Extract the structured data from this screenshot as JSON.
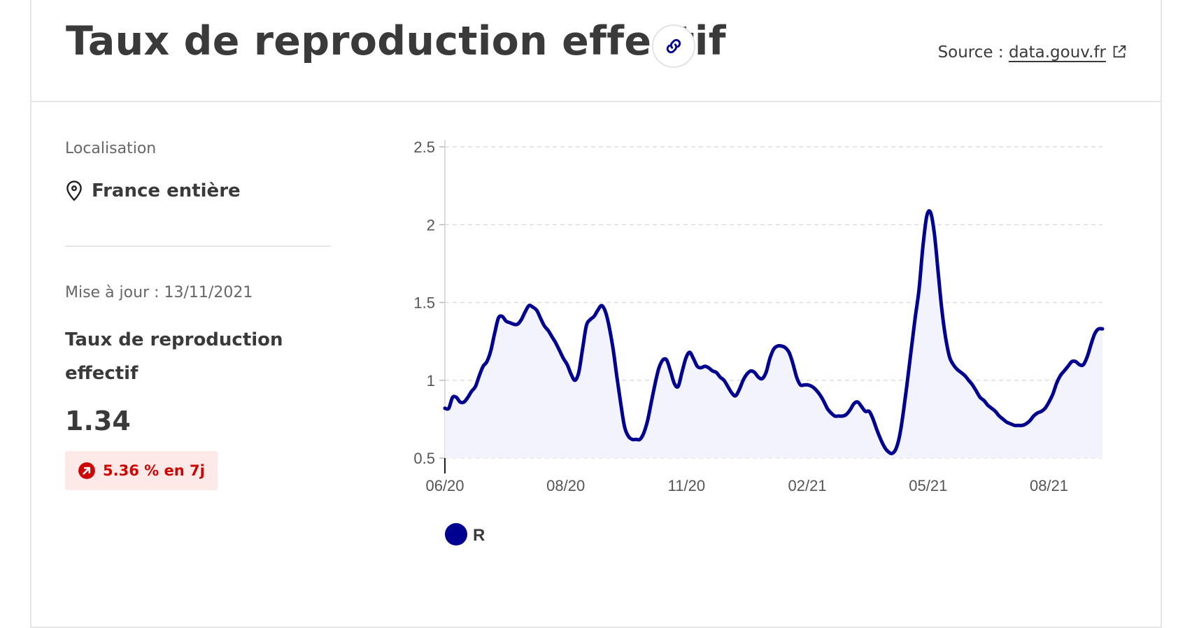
{
  "header": {
    "title": "Taux de reproduction effectif",
    "link_icon": "link-icon",
    "source_label": "Source : ",
    "source_link": "data.gouv.fr",
    "external_icon": "external-link-icon"
  },
  "sidebar": {
    "location_label": "Localisation",
    "location_icon": "map-pin-icon",
    "location_value": "France entière",
    "updated": "Mise à jour : 13/11/2021",
    "metric_name": "Taux de reproduction effectif",
    "metric_value": "1.34",
    "trend_icon": "arrow-up-right-icon",
    "trend_text": "5.36 % en 7j",
    "trend_color": "#ce0500"
  },
  "chart_data": {
    "type": "area",
    "ylim": [
      0.5,
      2.5
    ],
    "yticks": [
      "0.5",
      "1",
      "1.5",
      "2",
      "2.5"
    ],
    "xticks": [
      "06/20",
      "08/20",
      "11/20",
      "02/21",
      "05/21",
      "08/21"
    ],
    "grid": true,
    "legend_position": "bottom-left",
    "line_color": "#000091",
    "fill_color": "#f3f3fd",
    "series": [
      {
        "name": "R",
        "values": [
          0.82,
          0.82,
          0.89,
          0.89,
          0.86,
          0.86,
          0.89,
          0.93,
          0.96,
          1.03,
          1.09,
          1.12,
          1.19,
          1.3,
          1.4,
          1.41,
          1.38,
          1.37,
          1.36,
          1.36,
          1.39,
          1.44,
          1.48,
          1.47,
          1.45,
          1.4,
          1.35,
          1.32,
          1.28,
          1.24,
          1.19,
          1.14,
          1.1,
          1.04,
          1.0,
          1.05,
          1.2,
          1.35,
          1.39,
          1.41,
          1.45,
          1.48,
          1.44,
          1.34,
          1.2,
          1.02,
          0.85,
          0.7,
          0.64,
          0.62,
          0.62,
          0.62,
          0.66,
          0.74,
          0.86,
          0.98,
          1.08,
          1.13,
          1.13,
          1.06,
          0.98,
          0.96,
          1.05,
          1.14,
          1.18,
          1.14,
          1.09,
          1.08,
          1.09,
          1.08,
          1.06,
          1.05,
          1.02,
          1.0,
          0.96,
          0.92,
          0.9,
          0.94,
          1.0,
          1.04,
          1.06,
          1.05,
          1.02,
          1.01,
          1.05,
          1.14,
          1.2,
          1.22,
          1.22,
          1.21,
          1.18,
          1.11,
          1.02,
          0.97,
          0.97,
          0.97,
          0.96,
          0.94,
          0.91,
          0.87,
          0.82,
          0.79,
          0.77,
          0.77,
          0.77,
          0.78,
          0.81,
          0.85,
          0.86,
          0.83,
          0.8,
          0.8,
          0.75,
          0.68,
          0.62,
          0.57,
          0.54,
          0.53,
          0.56,
          0.65,
          0.81,
          1.0,
          1.2,
          1.4,
          1.58,
          1.85,
          2.05,
          2.08,
          1.95,
          1.7,
          1.45,
          1.27,
          1.15,
          1.1,
          1.07,
          1.05,
          1.03,
          1.0,
          0.97,
          0.93,
          0.89,
          0.87,
          0.84,
          0.82,
          0.8,
          0.77,
          0.75,
          0.73,
          0.72,
          0.71,
          0.71,
          0.71,
          0.72,
          0.74,
          0.77,
          0.79,
          0.8,
          0.82,
          0.86,
          0.91,
          0.98,
          1.03,
          1.06,
          1.09,
          1.12,
          1.12,
          1.1,
          1.1,
          1.15,
          1.23,
          1.3,
          1.33,
          1.33
        ]
      }
    ]
  }
}
